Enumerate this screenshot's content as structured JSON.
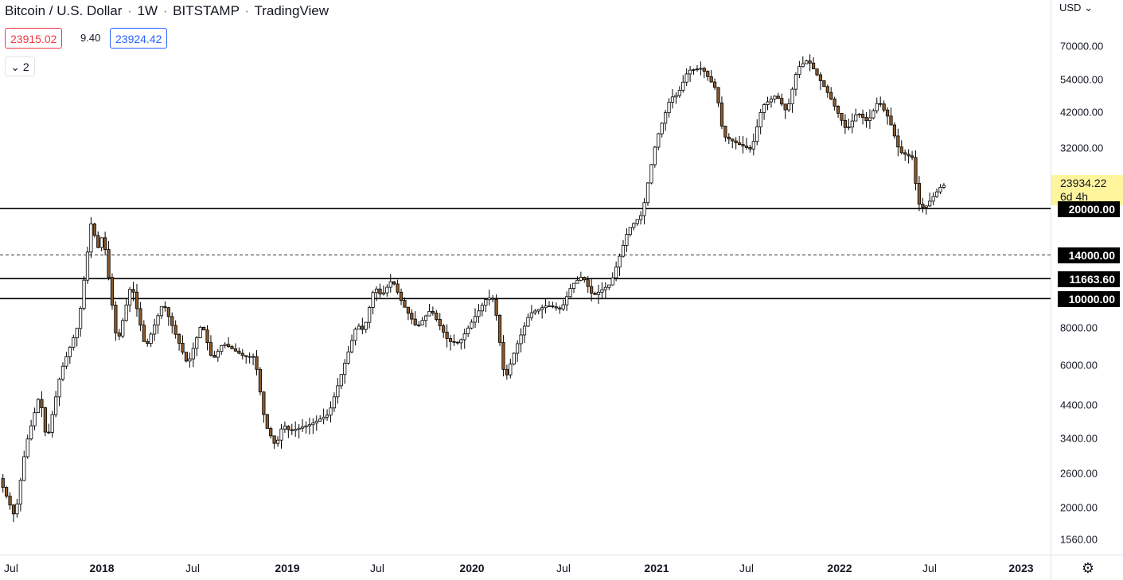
{
  "header": {
    "symbol": "Bitcoin / U.S. Dollar",
    "interval": "1W",
    "exchange": "BITSTAMP",
    "source": "TradingView",
    "separator": "·",
    "bid": "23915.02",
    "spread": "9.40",
    "ask": "23924.42",
    "indicator_count": "2"
  },
  "price_axis": {
    "currency": "USD",
    "ticks": [
      "70000.00",
      "54000.00",
      "42000.00",
      "32000.00",
      "8000.00",
      "6000.00",
      "4400.00",
      "3400.00",
      "2600.00",
      "2000.00",
      "1560.00"
    ],
    "last_price": "23934.22",
    "countdown": "6d 4h",
    "last_price_color": "#fff59d"
  },
  "time_axis": {
    "labels": [
      {
        "text": "Jul",
        "bold": false
      },
      {
        "text": "2018",
        "bold": true
      },
      {
        "text": "Jul",
        "bold": false
      },
      {
        "text": "2019",
        "bold": true
      },
      {
        "text": "Jul",
        "bold": false
      },
      {
        "text": "2020",
        "bold": true
      },
      {
        "text": "Jul",
        "bold": false
      },
      {
        "text": "2021",
        "bold": true
      },
      {
        "text": "Jul",
        "bold": false
      },
      {
        "text": "2022",
        "bold": true
      },
      {
        "text": "Jul",
        "bold": false
      },
      {
        "text": "2023",
        "bold": true
      }
    ]
  },
  "chart_data": {
    "type": "candlestick",
    "log_scale": true,
    "ylim": [
      1350,
      95000
    ],
    "colors": {
      "up": "#ffffff",
      "down": "#8d5a2b",
      "wick": "#000000"
    },
    "horizontal_levels": [
      {
        "label": "20000.00",
        "value": 20000,
        "style": "solid"
      },
      {
        "label": "14000.00",
        "value": 14000,
        "style": "dashed"
      },
      {
        "label": "11663.60",
        "value": 11663.6,
        "style": "solid"
      },
      {
        "label": "10000.00",
        "value": 10000,
        "style": "solid"
      }
    ],
    "anchors": [
      [
        "2017-06-15",
        2500
      ],
      [
        "2017-07-16",
        1850
      ],
      [
        "2017-08-06",
        3200
      ],
      [
        "2017-09-03",
        4800
      ],
      [
        "2017-09-17",
        3300
      ],
      [
        "2017-10-15",
        5700
      ],
      [
        "2017-11-19",
        8200
      ],
      [
        "2017-12-17",
        19500
      ],
      [
        "2017-12-24",
        14200
      ],
      [
        "2018-01-07",
        16500
      ],
      [
        "2018-02-04",
        7000
      ],
      [
        "2018-03-04",
        11300
      ],
      [
        "2018-04-01",
        6800
      ],
      [
        "2018-05-06",
        9700
      ],
      [
        "2018-06-24",
        6000
      ],
      [
        "2018-07-22",
        8300
      ],
      [
        "2018-08-12",
        6200
      ],
      [
        "2018-09-02",
        7100
      ],
      [
        "2018-10-14",
        6400
      ],
      [
        "2018-11-04",
        6400
      ],
      [
        "2018-11-25",
        3800
      ],
      [
        "2018-12-16",
        3200
      ],
      [
        "2018-12-30",
        3800
      ],
      [
        "2019-01-13",
        3600
      ],
      [
        "2019-02-24",
        3800
      ],
      [
        "2019-03-31",
        4100
      ],
      [
        "2019-04-21",
        5300
      ],
      [
        "2019-05-26",
        8200
      ],
      [
        "2019-06-09",
        7800
      ],
      [
        "2019-06-30",
        11000
      ],
      [
        "2019-07-14",
        10200
      ],
      [
        "2019-08-04",
        11600
      ],
      [
        "2019-08-25",
        9600
      ],
      [
        "2019-09-22",
        8000
      ],
      [
        "2019-10-20",
        9200
      ],
      [
        "2019-11-24",
        7200
      ],
      [
        "2019-12-15",
        7100
      ],
      [
        "2020-01-12",
        8500
      ],
      [
        "2020-02-09",
        10100
      ],
      [
        "2020-02-23",
        9900
      ],
      [
        "2020-03-15",
        5300
      ],
      [
        "2020-04-05",
        6800
      ],
      [
        "2020-05-03",
        8900
      ],
      [
        "2020-06-07",
        9500
      ],
      [
        "2020-07-05",
        9200
      ],
      [
        "2020-07-26",
        11100
      ],
      [
        "2020-08-16",
        11900
      ],
      [
        "2020-09-06",
        10200
      ],
      [
        "2020-10-11",
        11200
      ],
      [
        "2020-10-25",
        13200
      ],
      [
        "2020-11-15",
        17000
      ],
      [
        "2020-12-13",
        19200
      ],
      [
        "2020-12-27",
        26000
      ],
      [
        "2021-01-10",
        34000
      ],
      [
        "2021-02-07",
        47000
      ],
      [
        "2021-02-21",
        48000
      ],
      [
        "2021-03-14",
        58000
      ],
      [
        "2021-04-11",
        59000
      ],
      [
        "2021-05-09",
        50000
      ],
      [
        "2021-05-23",
        35000
      ],
      [
        "2021-06-20",
        33000
      ],
      [
        "2021-07-18",
        31500
      ],
      [
        "2021-08-08",
        44000
      ],
      [
        "2021-09-05",
        48000
      ],
      [
        "2021-09-26",
        42000
      ],
      [
        "2021-10-17",
        59000
      ],
      [
        "2021-11-07",
        63000
      ],
      [
        "2021-11-28",
        55000
      ],
      [
        "2021-12-19",
        48000
      ],
      [
        "2022-01-23",
        36500
      ],
      [
        "2022-02-13",
        42000
      ],
      [
        "2022-03-06",
        39000
      ],
      [
        "2022-03-27",
        46000
      ],
      [
        "2022-04-17",
        40000
      ],
      [
        "2022-05-08",
        31000
      ],
      [
        "2022-06-05",
        29500
      ],
      [
        "2022-06-12",
        21000
      ],
      [
        "2022-06-26",
        20000
      ],
      [
        "2022-07-17",
        22300
      ],
      [
        "2022-07-31",
        23934
      ]
    ]
  }
}
